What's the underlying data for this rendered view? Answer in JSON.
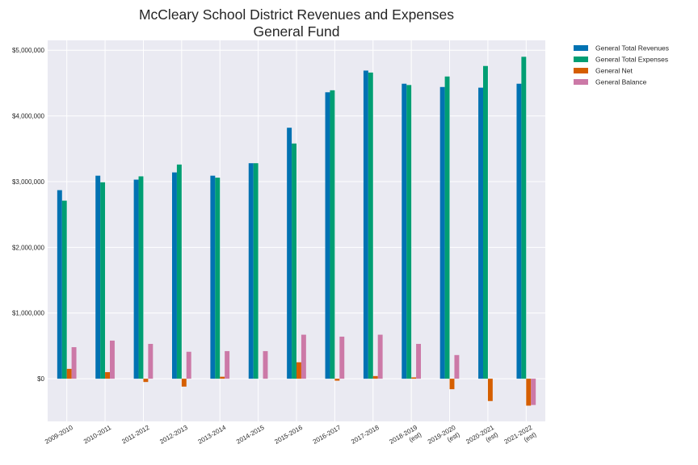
{
  "chart_data": {
    "type": "bar",
    "title_line1": "McCleary School District Revenues and Expenses",
    "title_line2": "General Fund",
    "xlabel": "",
    "ylabel": "",
    "ylim": [
      -650000,
      5150000
    ],
    "yticks": [
      0,
      1000000,
      2000000,
      3000000,
      4000000,
      5000000
    ],
    "ytick_labels": [
      "$0",
      "$1,000,000",
      "$2,000,000",
      "$3,000,000",
      "$4,000,000",
      "$5,000,000"
    ],
    "grid": true,
    "legend_position": "outside-top-right",
    "categories": [
      [
        "2009-2010"
      ],
      [
        "2010-2011"
      ],
      [
        "2011-2012"
      ],
      [
        "2012-2013"
      ],
      [
        "2013-2014"
      ],
      [
        "2014-2015"
      ],
      [
        "2015-2016"
      ],
      [
        "2016-2017"
      ],
      [
        "2017-2018"
      ],
      [
        "2018-2019",
        "(est)"
      ],
      [
        "2019-2020",
        "(est)"
      ],
      [
        "2020-2021",
        "(est)"
      ],
      [
        "2021-2022",
        "(est)"
      ]
    ],
    "series": [
      {
        "name": "General Total Revenues",
        "color": "#0072b2",
        "values": [
          2870000,
          3090000,
          3030000,
          3140000,
          3090000,
          3280000,
          3820000,
          4360000,
          4690000,
          4490000,
          4440000,
          4430000,
          4490000
        ]
      },
      {
        "name": "General Total Expenses",
        "color": "#009e73",
        "values": [
          2710000,
          2990000,
          3080000,
          3260000,
          3060000,
          3280000,
          3580000,
          4390000,
          4660000,
          4470000,
          4600000,
          4760000,
          4900000
        ]
      },
      {
        "name": "General Net",
        "color": "#d55e00",
        "values": [
          150000,
          100000,
          -50000,
          -120000,
          30000,
          0,
          250000,
          -30000,
          40000,
          20000,
          -160000,
          -340000,
          -410000
        ]
      },
      {
        "name": "General Balance",
        "color": "#cc79a7",
        "values": [
          480000,
          580000,
          530000,
          410000,
          420000,
          420000,
          670000,
          640000,
          670000,
          530000,
          360000,
          0,
          -400000
        ]
      }
    ]
  }
}
